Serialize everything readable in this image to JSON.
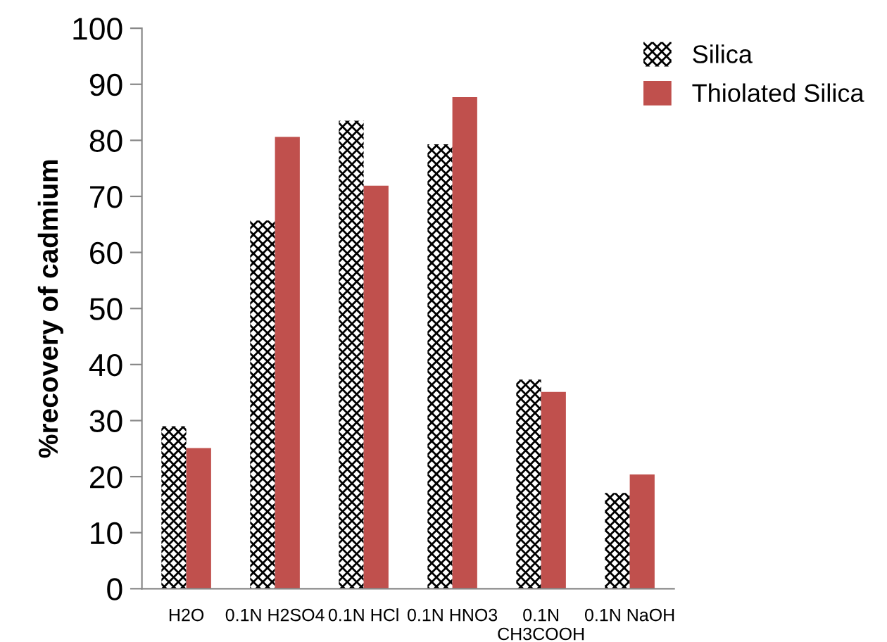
{
  "chart_data": {
    "type": "bar",
    "ylabel": "%recovery of cadmium",
    "categories": [
      "H2O",
      "0.1N H2SO4",
      "0.1N HCl",
      "0.1N HNO3",
      "0.1N CH3COOH",
      "0.1N NaOH"
    ],
    "series": [
      {
        "name": "Silica",
        "color": "#000000",
        "values": [
          29,
          65.7,
          83.5,
          79.3,
          37.3,
          17.1
        ]
      },
      {
        "name": "Thiolated Silica",
        "color": "#c0504d",
        "values": [
          25.1,
          80.6,
          71.9,
          87.7,
          35.1,
          20.4
        ]
      }
    ],
    "ylim": [
      0,
      100
    ],
    "yticks": [
      0,
      10,
      20,
      30,
      40,
      50,
      60,
      70,
      80,
      90,
      100
    ],
    "grid": false,
    "legend": "top right"
  }
}
